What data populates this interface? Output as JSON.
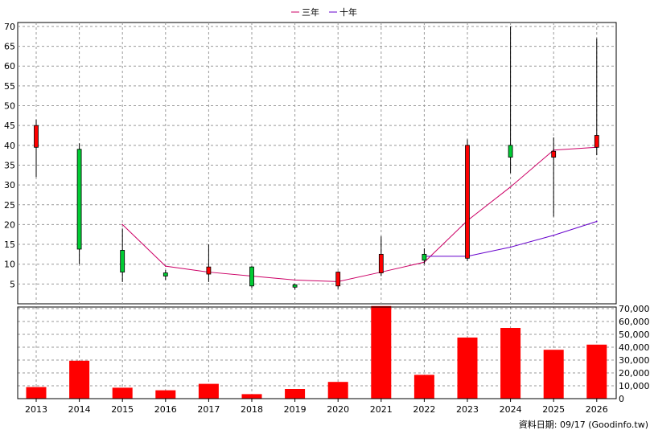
{
  "footer": "資料日期: 09/17 (Goodinfo.tw)",
  "legend": [
    {
      "label": "三年",
      "color": "#cc0066"
    },
    {
      "label": "十年",
      "color": "#6600cc"
    }
  ],
  "chart_data": [
    {
      "type": "candlestick",
      "x": [
        "2013",
        "2014",
        "2015",
        "2016",
        "2017",
        "2018",
        "2019",
        "2020",
        "2021",
        "2022",
        "2023",
        "2024",
        "2025",
        "2026"
      ],
      "ylim": [
        0,
        71
      ],
      "yticks": [
        5,
        10,
        15,
        20,
        25,
        30,
        35,
        40,
        45,
        50,
        55,
        60,
        65,
        70
      ],
      "grid": true,
      "legend_position": "top-center",
      "candles": [
        {
          "x": "2013",
          "open": 39.5,
          "close": 45.0,
          "high": 46.5,
          "low": 32.0
        },
        {
          "x": "2014",
          "open": 39.0,
          "close": 13.8,
          "high": 40.5,
          "low": 10.0
        },
        {
          "x": "2015",
          "open": 13.5,
          "close": 8.0,
          "high": 19.0,
          "low": 5.5
        },
        {
          "x": "2016",
          "open": 7.8,
          "close": 7.0,
          "high": 8.5,
          "low": 6.0
        },
        {
          "x": "2017",
          "open": 7.5,
          "close": 9.3,
          "high": 15.0,
          "low": 5.5
        },
        {
          "x": "2018",
          "open": 9.3,
          "close": 4.5,
          "high": 9.5,
          "low": 4.0
        },
        {
          "x": "2019",
          "open": 4.8,
          "close": 4.2,
          "high": 5.0,
          "low": 3.6
        },
        {
          "x": "2020",
          "open": 4.5,
          "close": 8.0,
          "high": 8.2,
          "low": 3.8
        },
        {
          "x": "2021",
          "open": 7.8,
          "close": 12.5,
          "high": 17.0,
          "low": 7.0
        },
        {
          "x": "2022",
          "open": 12.5,
          "close": 11.0,
          "high": 14.0,
          "low": 10.0
        },
        {
          "x": "2023",
          "open": 11.5,
          "close": 40.0,
          "high": 41.5,
          "low": 10.8
        },
        {
          "x": "2024",
          "open": 40.0,
          "close": 37.0,
          "high": 70.0,
          "low": 33.0
        },
        {
          "x": "2025",
          "open": 37.0,
          "close": 38.5,
          "high": 42.0,
          "low": 22.0
        },
        {
          "x": "2026",
          "open": 39.5,
          "close": 42.5,
          "high": 67.0,
          "low": 37.5
        }
      ],
      "series": [
        {
          "name": "三年",
          "color": "#cc0066",
          "x": [
            "2015",
            "2016",
            "2017",
            "2018",
            "2019",
            "2020",
            "2021",
            "2022",
            "2023",
            "2024",
            "2025",
            "2026"
          ],
          "values": [
            20.0,
            9.5,
            8.0,
            7.0,
            6.0,
            5.6,
            8.0,
            10.5,
            21.0,
            29.5,
            38.8,
            39.5
          ]
        },
        {
          "name": "十年",
          "color": "#6600cc",
          "x": [
            "2022",
            "2023",
            "2024",
            "2025",
            "2026"
          ],
          "values": [
            12.0,
            12.0,
            14.3,
            17.3,
            20.8
          ]
        }
      ]
    },
    {
      "type": "bar",
      "categories": [
        "2013",
        "2014",
        "2015",
        "2016",
        "2017",
        "2018",
        "2019",
        "2020",
        "2021",
        "2022",
        "2023",
        "2024",
        "2025",
        "2026"
      ],
      "values": [
        9000,
        29500,
        8500,
        6500,
        11500,
        3500,
        7500,
        13000,
        72000,
        18500,
        47500,
        55000,
        38000,
        42000
      ],
      "ylim": [
        0,
        70000
      ],
      "ytick_labels": [
        "0",
        "10,000",
        "20,000",
        "30,000",
        "40,000",
        "50,000",
        "60,000",
        "70,000"
      ],
      "color": "#ff0000",
      "grid": true
    }
  ]
}
